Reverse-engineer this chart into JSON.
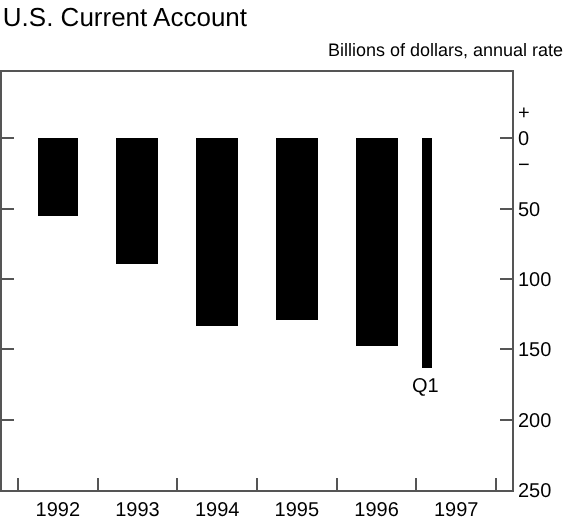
{
  "chart_data": {
    "type": "bar",
    "title": "U.S. Current Account",
    "subtitle": "Billions of dollars, annual rate",
    "series": [
      {
        "color": "#000000",
        "x": [
          1992.5,
          1993.5,
          1994.5,
          1995.5,
          1996.5
        ],
        "values": [
          56,
          90,
          133,
          129,
          148
        ]
      },
      {
        "color": "#000000",
        "x": [
          1997.125
        ],
        "values": [
          164
        ]
      }
    ],
    "annotations": [
      {
        "text": "Q1",
        "x": 1997.125,
        "y": 164
      }
    ],
    "xlim": [
      1991.8,
      1998.2
    ],
    "xticks": [
      {
        "value": 1992,
        "label": null
      },
      {
        "value": 1992.5,
        "label": "1992"
      },
      {
        "value": 1993,
        "label": null
      },
      {
        "value": 1993.5,
        "label": "1993"
      },
      {
        "value": 1994,
        "label": null
      },
      {
        "value": 1994.5,
        "label": "1994"
      },
      {
        "value": 1995,
        "label": null
      },
      {
        "value": 1995.5,
        "label": "1995"
      },
      {
        "value": 1996,
        "label": null
      },
      {
        "value": 1996.5,
        "label": "1996"
      },
      {
        "value": 1997,
        "label": null
      },
      {
        "value": 1997.5,
        "label": "1997"
      },
      {
        "value": 1998,
        "label": null
      }
    ],
    "ylim": [
      250,
      -47
    ],
    "yticks": [
      {
        "value": 0,
        "label": "+\n0\n−"
      },
      50,
      100,
      150,
      200,
      250
    ],
    "tick_labels": true
  }
}
